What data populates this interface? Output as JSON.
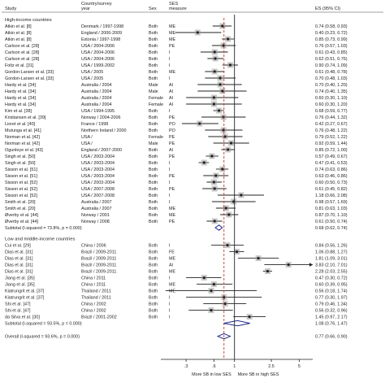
{
  "chart_data": {
    "type": "forest",
    "headers": {
      "study": "Study",
      "country": "Country/survey\nyear",
      "sex": "Sex",
      "measure": "SES\nmeasure",
      "es": "ES (95% CI)"
    },
    "x_scale": "log",
    "x_ticks": [
      {
        "value": 0.3,
        "label": ".3"
      },
      {
        "value": 0.6,
        "label": ".6"
      },
      {
        "value": 1,
        "label": "1"
      },
      {
        "value": 2.5,
        "label": "2.5"
      },
      {
        "value": 5,
        "label": "5"
      }
    ],
    "null_line": 1,
    "overall_dashed_line": 0.77,
    "x_axis_left_label": "More SB in low SES",
    "x_axis_right_label": "More SB in high SES",
    "groups": [
      {
        "title": "High-income countries",
        "studies": [
          {
            "study": "Atkin et al. [8]",
            "country": "Denmark / 1997-1998",
            "sex": "Both",
            "measure": "ME",
            "es": 0.74,
            "lo": 0.58,
            "hi": 0.93,
            "text": "0.74 (0.58, 0.93)"
          },
          {
            "study": "Atkin et al. [8]",
            "country": "England / 2006-2009",
            "sex": "Both",
            "measure": "ME",
            "es": 0.4,
            "lo": 0.23,
            "hi": 0.72,
            "text": "0.40 (0.23, 0.72)"
          },
          {
            "study": "Atkin et al. [8]",
            "country": "Estonia / 1997-1998",
            "sex": "Both",
            "measure": "ME",
            "es": 0.85,
            "lo": 0.73,
            "hi": 0.99,
            "text": "0.85 (0.73, 0.99)"
          },
          {
            "study": "Carlson et al. [28]",
            "country": "USA / 2004-2006",
            "sex": "Both",
            "measure": "PE",
            "es": 0.76,
            "lo": 0.57,
            "hi": 1.03,
            "text": "0.76 (0.57, 1.03)"
          },
          {
            "study": "Carlson et al. [28]",
            "country": "USA / 2004-2006",
            "sex": "Both",
            "measure": "I",
            "es": 0.61,
            "lo": 0.43,
            "hi": 0.85,
            "text": "0.61 (0.43, 0.85)"
          },
          {
            "study": "Carlson et al. [28]",
            "country": "USA / 2004-2006",
            "sex": "Both",
            "measure": "I",
            "es": 0.62,
            "lo": 0.51,
            "hi": 0.76,
            "text": "0.62 (0.51, 0.76)"
          },
          {
            "study": "Foltz et al. [31]",
            "country": "USA / 1999-2002",
            "sex": "Both",
            "measure": "I",
            "es": 0.9,
            "lo": 0.74,
            "hi": 1.09,
            "text": "0.90 (0.74, 1.09)"
          },
          {
            "study": "Gordon-Larsen et al. [33]",
            "country": "USA / 2005",
            "sex": "Both",
            "measure": "ME",
            "es": 0.61,
            "lo": 0.48,
            "hi": 0.78,
            "text": "0.61 (0.48, 0.78)"
          },
          {
            "study": "Gordon-Larsen et al. [33]",
            "country": "USA / 2005",
            "sex": "Both",
            "measure": "I",
            "es": 0.7,
            "lo": 0.48,
            "hi": 1.03,
            "text": "0.70 (0.48, 1.03)"
          },
          {
            "study": "Hardy et al. [34]",
            "country": "Australia / 2004",
            "sex": "Male",
            "measure": "AI",
            "es": 0.7,
            "lo": 0.4,
            "hi": 1.2,
            "text": "0.70 (0.40, 1.20)"
          },
          {
            "study": "Hardy et al. [34]",
            "country": "Australia / 2004",
            "sex": "Male",
            "measure": "AI",
            "es": 0.74,
            "lo": 0.4,
            "hi": 1.35,
            "text": "0.74 (0.40, 1.35)"
          },
          {
            "study": "Hardy et al. [34]",
            "country": "Australia / 2004",
            "sex": "Female",
            "measure": "AI",
            "es": 0.6,
            "lo": 0.3,
            "hi": 1.1,
            "text": "0.60 (0.30, 1.10)"
          },
          {
            "study": "Hardy et al. [34]",
            "country": "Australia / 2004",
            "sex": "Female",
            "measure": "AI",
            "es": 0.6,
            "lo": 0.3,
            "hi": 1.2,
            "text": "0.60 (0.30, 1.20)"
          },
          {
            "study": "Kim et al. [38]",
            "country": "USA / 1994-1995",
            "sex": "Both",
            "measure": "I",
            "es": 0.68,
            "lo": 0.59,
            "hi": 0.77,
            "text": "0.68 (0.59, 0.77)"
          },
          {
            "study": "Kristiansen et al. [39]",
            "country": "Norway / 2004-2006",
            "sex": "Both",
            "measure": "PE",
            "es": 0.76,
            "lo": 0.44,
            "hi": 1.32,
            "text": "0.76 (0.44, 1.32)"
          },
          {
            "study": "Lioret et al. [40]",
            "country": "France / 1998",
            "sex": "Both",
            "measure": "PO",
            "es": 0.42,
            "lo": 0.27,
            "hi": 0.67,
            "text": "0.42 (0.27, 0.67)"
          },
          {
            "study": "Mutunga et al. [41]",
            "country": "Northern Ireland / 2000",
            "sex": "Both",
            "measure": "PO",
            "es": 0.76,
            "lo": 0.48,
            "hi": 1.22,
            "text": "0.76 (0.48, 1.22)"
          },
          {
            "study": "Norman et al. [42]",
            "country": "USA /",
            "sex": "Female",
            "measure": "PE",
            "es": 0.79,
            "lo": 0.52,
            "hi": 1.22,
            "text": "0.79 (0.52, 1.22)"
          },
          {
            "study": "Norman et al. [42]",
            "country": "USA /",
            "sex": "Male",
            "measure": "PE",
            "es": 0.92,
            "lo": 0.59,
            "hi": 1.44,
            "text": "0.92 (0.59, 1.44)"
          },
          {
            "study": "Ogunleye et al. [43]",
            "country": "England / 2007-2000",
            "sex": "Both",
            "measure": "AI",
            "es": 0.85,
            "lo": 0.72,
            "hi": 1.0,
            "text": "0.85 (0.72, 1.00)"
          },
          {
            "study": "Singh et al. [50]",
            "country": "USA / 2003-2004",
            "sex": "Both",
            "measure": "PE",
            "es": 0.57,
            "lo": 0.49,
            "hi": 0.67,
            "text": "0.57 (0.49, 0.67)"
          },
          {
            "study": "Singh et al. [50]",
            "country": "USA / 2003-2004",
            "sex": "Both",
            "measure": "I",
            "es": 0.47,
            "lo": 0.41,
            "hi": 0.53,
            "text": "0.47 (0.41, 0.53)"
          },
          {
            "study": "Sisson et al. [51]",
            "country": "USA / 2003-2004",
            "sex": "Both",
            "measure": "I",
            "es": 0.74,
            "lo": 0.63,
            "hi": 0.86,
            "text": "0.74 (0.63, 0.86)"
          },
          {
            "study": "Sisson et al. [51]",
            "country": "USA / 2003-2004",
            "sex": "Both",
            "measure": "PE",
            "es": 0.63,
            "lo": 0.46,
            "hi": 0.86,
            "text": "0.63 (0.46, 0.86)"
          },
          {
            "study": "Sisson et al. [52]",
            "country": "USA / 2003-2004",
            "sex": "Both",
            "measure": "I",
            "es": 0.6,
            "lo": 0.5,
            "hi": 0.73,
            "text": "0.60 (0.50, 0.73)"
          },
          {
            "study": "Sisson et al. [52]",
            "country": "USA / 2007-2008",
            "sex": "Both",
            "measure": "PE",
            "es": 0.61,
            "lo": 0.45,
            "hi": 0.82,
            "text": "0.61 (0.45, 0.82)"
          },
          {
            "study": "Sisson et al. [52]",
            "country": "USA / 2007-2008",
            "sex": "Both",
            "measure": "I",
            "es": 1.18,
            "lo": 0.66,
            "hi": 2.08,
            "text": "1.18 (0.66, 2.08)"
          },
          {
            "study": "Smith et al. [20]",
            "country": "Australia / 2007",
            "sex": "Both",
            "measure": "I",
            "es": 0.98,
            "lo": 0.57,
            "hi": 1.69,
            "text": "0.98 (0.57, 1.69)"
          },
          {
            "study": "Smith et al. [20]",
            "country": "Australia / 2007",
            "sex": "Both",
            "measure": "ME",
            "es": 0.81,
            "lo": 0.63,
            "hi": 1.03,
            "text": "0.81 (0.63, 1.03)"
          },
          {
            "study": "Øverby et al. [44]",
            "country": "Norway / 2001",
            "sex": "Both",
            "measure": "ME",
            "es": 0.87,
            "lo": 0.7,
            "hi": 1.1,
            "text": "0.87 (0.70, 1.10)"
          },
          {
            "study": "Øverby et al. [44]",
            "country": "Norway / 2008",
            "sex": "Both",
            "measure": "PE",
            "es": 0.61,
            "lo": 0.5,
            "hi": 0.74,
            "text": "0.61 (0.50, 0.74)"
          }
        ],
        "subtotal": {
          "label": "Subtotal  (I-squared = 73.8%, p = 0.000)",
          "es": 0.68,
          "lo": 0.62,
          "hi": 0.74,
          "text": "0.68 (0.62, 0.74)"
        }
      },
      {
        "title": "Low and middle-income countries",
        "studies": [
          {
            "study": "Cui et al. [29]",
            "country": "China / 2006",
            "sex": "Both",
            "measure": "I",
            "es": 0.84,
            "lo": 0.56,
            "hi": 1.26,
            "text": "0.84 (0.56, 1.26)"
          },
          {
            "study": "Dias et al. [31]",
            "country": "Brazil / 2009-2011",
            "sex": "Both",
            "measure": "FE",
            "es": 1.06,
            "lo": 0.88,
            "hi": 1.27,
            "text": "1.06 (0.88, 1.27)"
          },
          {
            "study": "Dias et al. [31]",
            "country": "Brazil / 2009-2011",
            "sex": "Both",
            "measure": "ME",
            "es": 1.81,
            "lo": 1.09,
            "hi": 3.01,
            "text": "1.81 (1.09, 3.01)"
          },
          {
            "study": "Dias et al. [31]",
            "country": "Brazil / 2009-2011",
            "sex": "Both",
            "measure": "AI",
            "es": 3.83,
            "lo": 2.1,
            "hi": 7.01,
            "text": "3.83 (2.10, 7.01)"
          },
          {
            "study": "Dias et al. [31]",
            "country": "Brazil / 2009-2011",
            "sex": "Both",
            "measure": "ME",
            "es": 2.28,
            "lo": 2.03,
            "hi": 2.55,
            "text": "2.28 (2.03, 2.55)"
          },
          {
            "study": "Jiang et al. [35]",
            "country": "China / 2011",
            "sex": "Both",
            "measure": "I",
            "es": 0.47,
            "lo": 0.3,
            "hi": 0.72,
            "text": "0.47 (0.30, 0.72)"
          },
          {
            "study": "Jiang et al. [35]",
            "country": "China / 2011",
            "sex": "Both",
            "measure": "ME",
            "es": 0.6,
            "lo": 0.39,
            "hi": 0.95,
            "text": "0.60 (0.39, 0.95)"
          },
          {
            "study": "Kiatrungrit et al. [37]",
            "country": "Thailand / 2011",
            "sex": "Both",
            "measure": "ME",
            "es": 0.56,
            "lo": 0.18,
            "hi": 1.74,
            "text": "0.56 (0.18, 1.74)"
          },
          {
            "study": "Kiatrungrit et al. [37]",
            "country": "Thailand / 2011",
            "sex": "Both",
            "measure": "I",
            "es": 0.77,
            "lo": 0.3,
            "hi": 1.97,
            "text": "0.77 (0.30, 1.97)"
          },
          {
            "study": "Shi et al. [47]",
            "country": "China / 2002",
            "sex": "Both",
            "measure": "I",
            "es": 0.79,
            "lo": 0.46,
            "hi": 1.34,
            "text": "0.79 (0.46, 1.34)"
          },
          {
            "study": "Shi et al. [47]",
            "country": "China / 2002",
            "sex": "Both",
            "measure": "I",
            "es": 0.56,
            "lo": 0.32,
            "hi": 0.96,
            "text": "0.56 (0.32, 0.96)"
          },
          {
            "study": "da Silva et al. [30]",
            "country": "Brazil / 2001-2002",
            "sex": "Both",
            "measure": "I",
            "es": 1.45,
            "lo": 0.97,
            "hi": 2.17,
            "text": "1.45 (0.97, 2.17)"
          }
        ],
        "subtotal": {
          "label": "Subtotal  (I-squared = 93.5%, p = 0.000)",
          "es": 1.08,
          "lo": 0.76,
          "hi": 1.47,
          "text": "1.08 (0.76, 1.47)"
        }
      }
    ],
    "overall": {
      "label": "Overall  (I-squared = 93.6%, p = 0.000)",
      "es": 0.77,
      "lo": 0.66,
      "hi": 0.9,
      "text": "0.77 (0.66, 0.90)"
    },
    "colors": {
      "diamond": "#1f2a8a",
      "marker": "#222222",
      "box": "#9a9a9a",
      "overall_line": "#c0392b",
      "axis": "#222222"
    }
  }
}
